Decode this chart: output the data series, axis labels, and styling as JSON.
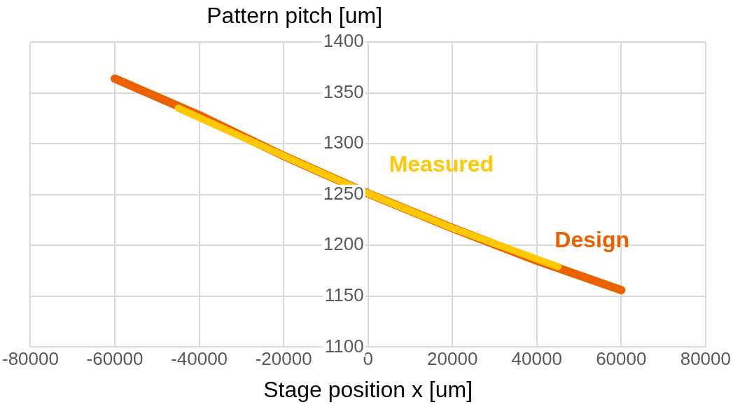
{
  "chart_data": {
    "type": "line",
    "ylabel": "Pattern pitch [um]",
    "xlabel": "Stage position x [um]",
    "xlim": [
      -80000,
      80000
    ],
    "xticks": [
      -80000,
      -60000,
      -40000,
      -20000,
      0,
      20000,
      40000,
      60000,
      80000
    ],
    "ylim": [
      1100,
      1400
    ],
    "yticks": [
      1100,
      1150,
      1200,
      1250,
      1300,
      1350,
      1400
    ],
    "grid": true,
    "legend": false,
    "marker": "none",
    "series": [
      {
        "name": "Design",
        "color": "#eb6100",
        "x": [
          -60000,
          -40000,
          -20000,
          0,
          20000,
          40000,
          60000
        ],
        "values": [
          1364,
          1328,
          1288,
          1251,
          1217,
          1185,
          1156
        ]
      },
      {
        "name": "Measured",
        "color": "#ffc800",
        "x": [
          -45000,
          -20000,
          0,
          20000,
          45000
        ],
        "values": [
          1335,
          1288,
          1251,
          1217,
          1179
        ]
      }
    ]
  }
}
